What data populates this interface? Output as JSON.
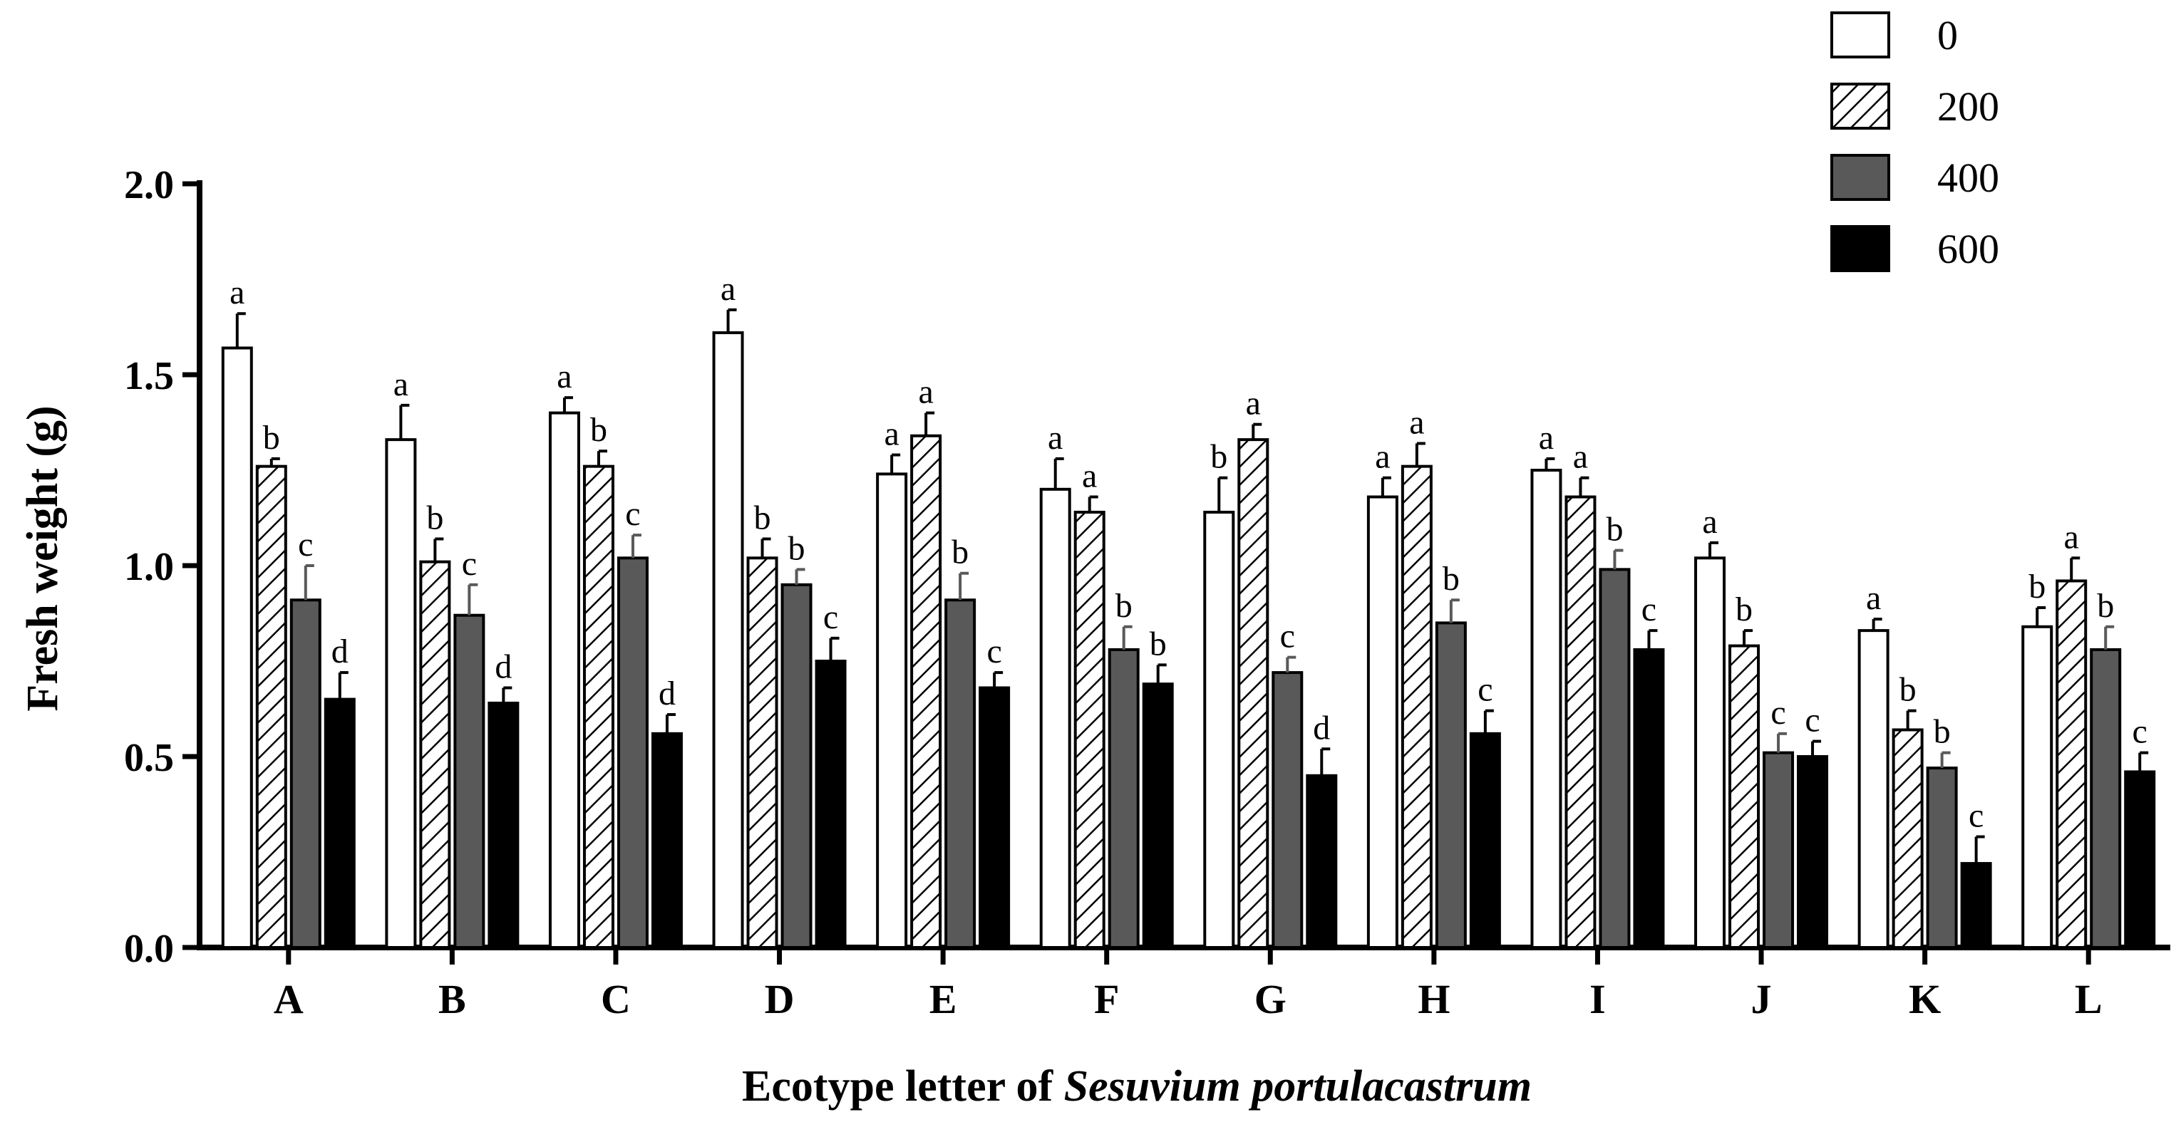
{
  "chart_data": {
    "type": "bar",
    "xlabel_prefix": "Ecotype letter of ",
    "xlabel_italic": "Sesuvium portulacastrum",
    "ylabel": "Fresh weight (g)",
    "ylim": [
      0,
      2.0
    ],
    "yticks": [
      "0.0",
      "0.5",
      "1.0",
      "1.5",
      "2.0"
    ],
    "ytick_values": [
      0,
      0.5,
      1.0,
      1.5,
      2.0
    ],
    "legend_position": "top-right",
    "categories": [
      "A",
      "B",
      "C",
      "D",
      "E",
      "F",
      "G",
      "H",
      "I",
      "J",
      "K",
      "L"
    ],
    "series": [
      {
        "name": "0",
        "style": "white",
        "values": [
          1.57,
          1.33,
          1.4,
          1.61,
          1.24,
          1.2,
          1.14,
          1.18,
          1.25,
          1.02,
          0.83,
          0.84
        ],
        "errors": [
          0.09,
          0.09,
          0.04,
          0.06,
          0.05,
          0.08,
          0.09,
          0.05,
          0.03,
          0.04,
          0.03,
          0.05
        ],
        "labels": [
          "a",
          "a",
          "a",
          "a",
          "a",
          "a",
          "b",
          "a",
          "a",
          "a",
          "a",
          "b"
        ]
      },
      {
        "name": "200",
        "style": "hatched",
        "values": [
          1.26,
          1.01,
          1.26,
          1.02,
          1.34,
          1.14,
          1.33,
          1.26,
          1.18,
          0.79,
          0.57,
          0.96
        ],
        "errors": [
          0.02,
          0.06,
          0.04,
          0.05,
          0.06,
          0.04,
          0.04,
          0.06,
          0.05,
          0.04,
          0.05,
          0.06
        ],
        "labels": [
          "b",
          "b",
          "b",
          "b",
          "a",
          "a",
          "a",
          "a",
          "a",
          "b",
          "b",
          "a"
        ]
      },
      {
        "name": "400",
        "style": "gray",
        "values": [
          0.91,
          0.87,
          1.02,
          0.95,
          0.91,
          0.78,
          0.72,
          0.85,
          0.99,
          0.51,
          0.47,
          0.78
        ],
        "errors": [
          0.09,
          0.08,
          0.06,
          0.04,
          0.07,
          0.06,
          0.04,
          0.06,
          0.05,
          0.05,
          0.04,
          0.06
        ],
        "labels": [
          "c",
          "c",
          "c",
          "b",
          "b",
          "b",
          "c",
          "b",
          "b",
          "c",
          "b",
          "b"
        ]
      },
      {
        "name": "600",
        "style": "black",
        "values": [
          0.65,
          0.64,
          0.56,
          0.75,
          0.68,
          0.69,
          0.45,
          0.56,
          0.78,
          0.5,
          0.22,
          0.46
        ],
        "errors": [
          0.07,
          0.04,
          0.05,
          0.06,
          0.04,
          0.05,
          0.07,
          0.06,
          0.05,
          0.04,
          0.07,
          0.05
        ],
        "labels": [
          "d",
          "d",
          "d",
          "c",
          "c",
          "b",
          "d",
          "c",
          "c",
          "c",
          "c",
          "c"
        ]
      }
    ],
    "colors": {
      "white": "#ffffff",
      "hatched": "#ffffff",
      "gray": "#595959",
      "black": "#000000",
      "outline": "#000000"
    }
  }
}
